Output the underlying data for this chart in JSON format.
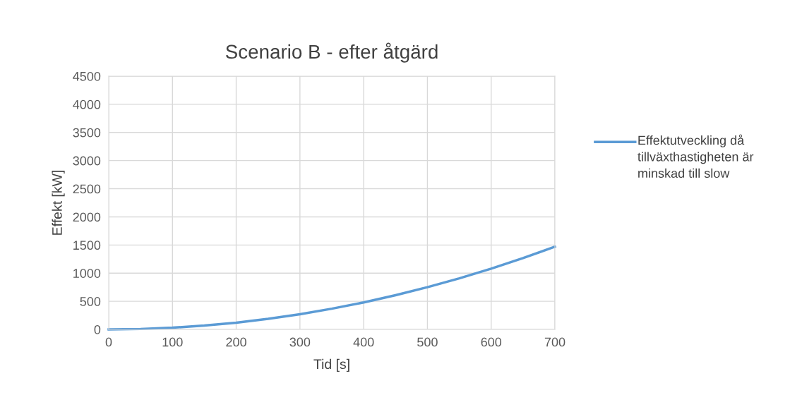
{
  "chart_data": {
    "type": "line",
    "title": "Scenario B - efter åtgärd",
    "xlabel": "Tid [s]",
    "ylabel": "Effekt [kW]",
    "x": [
      0,
      50,
      100,
      150,
      200,
      250,
      300,
      350,
      400,
      450,
      500,
      550,
      600,
      650,
      700
    ],
    "series": [
      {
        "name": "Effektutveckling då tillväxthastigheten är minskad till slow",
        "color": "#5b9bd5",
        "values": [
          0,
          8,
          30,
          68,
          120,
          188,
          270,
          368,
          480,
          608,
          750,
          908,
          1080,
          1268,
          1470
        ]
      }
    ],
    "xlim": [
      0,
      700
    ],
    "xticks": [
      0,
      100,
      200,
      300,
      400,
      500,
      600,
      700
    ],
    "ylim": [
      0,
      4500
    ],
    "yticks": [
      0,
      500,
      1000,
      1500,
      2000,
      2500,
      3000,
      3500,
      4000,
      4500
    ],
    "grid": true,
    "legend": "right",
    "marker": "none",
    "line_style": "solid"
  }
}
